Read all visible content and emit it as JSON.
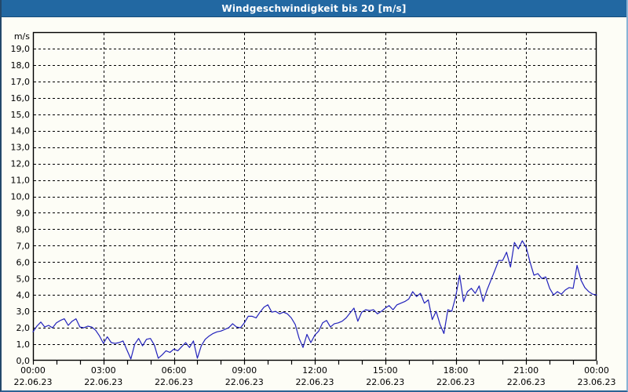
{
  "window": {
    "title": "Windgeschwindigkeit bis 20 [m/s]",
    "title_bar_color": "#2268a2",
    "border_color": "#2d6294",
    "background_color": "#fdfdf6"
  },
  "chart_data": {
    "type": "line",
    "title": "Windgeschwindigkeit bis 20 [m/s]",
    "ylabel": "m/s",
    "xlabel": "",
    "ylim": [
      0,
      20
    ],
    "ytick_interval": 1.0,
    "ytick_labels": [
      "0,0",
      "1,0",
      "2,0",
      "3,0",
      "4,0",
      "5,0",
      "6,0",
      "7,0",
      "8,0",
      "9,0",
      "10,0",
      "11,0",
      "12,0",
      "13,0",
      "14,0",
      "15,0",
      "16,0",
      "17,0",
      "18,0",
      "19,0"
    ],
    "xlim_hours": [
      0,
      24
    ],
    "xtick_minor_interval_hours": 1,
    "xticks": [
      {
        "hour": 0,
        "time": "00:00",
        "date": "22.06.23"
      },
      {
        "hour": 3,
        "time": "03:00",
        "date": "22.06.23"
      },
      {
        "hour": 6,
        "time": "06:00",
        "date": "22.06.23"
      },
      {
        "hour": 9,
        "time": "09:00",
        "date": "22.06.23"
      },
      {
        "hour": 12,
        "time": "12:00",
        "date": "22.06.23"
      },
      {
        "hour": 15,
        "time": "15:00",
        "date": "22.06.23"
      },
      {
        "hour": 18,
        "time": "18:00",
        "date": "22.06.23"
      },
      {
        "hour": 21,
        "time": "21:00",
        "date": "22.06.23"
      },
      {
        "hour": 24,
        "time": "00:00",
        "date": "23.06.23"
      }
    ],
    "grid": {
      "horizontal_dashed_every": 1.0,
      "vertical_dashed_every_hours": 3,
      "grid_color": "#000000"
    },
    "legend": "none",
    "line_color": "#2121bb",
    "series": [
      {
        "name": "Windgeschwindigkeit",
        "unit": "m/s",
        "x_start_min": 0,
        "x_step_min": 10,
        "values": [
          1.75,
          2.1,
          2.35,
          2.05,
          2.15,
          2.0,
          2.3,
          2.45,
          2.55,
          2.15,
          2.4,
          2.55,
          2.05,
          2.0,
          2.1,
          2.05,
          1.85,
          1.5,
          1.05,
          1.45,
          1.1,
          1.05,
          1.1,
          1.2,
          0.65,
          0.1,
          1.0,
          1.35,
          0.9,
          1.3,
          1.35,
          0.95,
          0.15,
          0.35,
          0.6,
          0.5,
          0.7,
          0.6,
          0.85,
          1.1,
          0.8,
          1.2,
          0.15,
          0.9,
          1.3,
          1.5,
          1.65,
          1.75,
          1.8,
          1.9,
          2.0,
          2.25,
          2.05,
          2.0,
          2.3,
          2.7,
          2.7,
          2.6,
          2.95,
          3.25,
          3.4,
          2.95,
          3.0,
          2.85,
          2.95,
          2.85,
          2.6,
          2.2,
          1.35,
          0.8,
          1.6,
          1.1,
          1.55,
          1.8,
          2.3,
          2.45,
          2.05,
          2.25,
          2.3,
          2.4,
          2.6,
          2.9,
          3.2,
          2.4,
          2.95,
          3.1,
          3.05,
          3.1,
          2.85,
          3.0,
          3.2,
          3.35,
          3.1,
          3.4,
          3.5,
          3.6,
          3.75,
          4.2,
          3.9,
          4.1,
          3.5,
          3.7,
          2.5,
          3.0,
          2.2,
          1.65,
          3.1,
          3.0,
          3.9,
          5.2,
          3.6,
          4.2,
          4.4,
          4.1,
          4.55,
          3.6,
          4.3,
          4.9,
          5.5,
          6.1,
          6.1,
          6.6,
          5.7,
          7.2,
          6.8,
          7.3,
          6.9,
          6.0,
          5.2,
          5.3,
          5.0,
          5.1,
          4.4,
          4.0,
          4.2,
          4.05,
          4.3,
          4.45,
          4.4,
          5.8,
          4.9,
          4.45,
          4.2,
          4.05,
          4.0
        ]
      }
    ]
  }
}
